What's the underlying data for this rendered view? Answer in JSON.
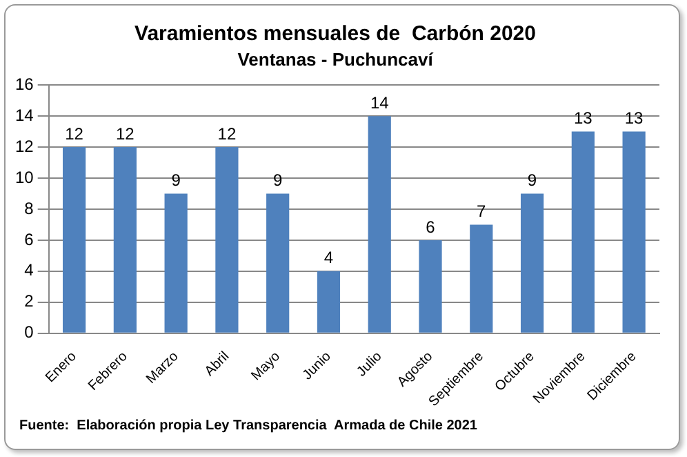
{
  "chart_data": {
    "type": "bar",
    "title": "Varamientos mensuales de  Carbón 2020",
    "subtitle": "Ventanas - Puchuncaví",
    "categories": [
      "Enero",
      "Febrero",
      "Marzo",
      "Abril",
      "Mayo",
      "Junio",
      "Julio",
      "Agosto",
      "Septiembre",
      "Octubre",
      "Noviembre",
      "Diciembre"
    ],
    "values": [
      12,
      12,
      9,
      12,
      9,
      4,
      14,
      6,
      7,
      9,
      13,
      13
    ],
    "color": "#4f81bd",
    "ylim": [
      0,
      16
    ],
    "yticks": [
      0,
      2,
      4,
      6,
      8,
      10,
      12,
      14,
      16
    ],
    "grid": "y",
    "data_labels": true,
    "legend": false,
    "annotations": [
      "Fuente:  Elaboración propia Ley Transparencia  Armada de Chile 2021"
    ]
  }
}
